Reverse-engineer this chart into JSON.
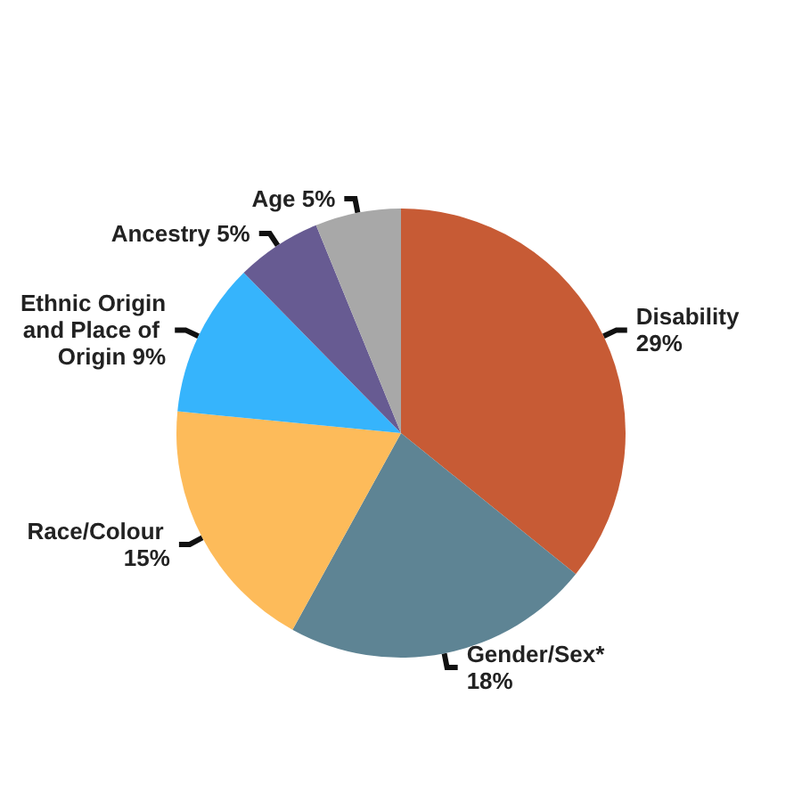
{
  "chart_data": {
    "type": "pie",
    "categories": [
      "Disability",
      "Gender/Sex*",
      "Race/Colour",
      "Ethnic Origin and Place of Origin",
      "Ancestry",
      "Age"
    ],
    "values": [
      29,
      18,
      15,
      9,
      5,
      5
    ],
    "value_labels": [
      "29%",
      "18%",
      "15%",
      "9%",
      "5%",
      "5%"
    ],
    "colors": [
      "#c75b35",
      "#5e8494",
      "#fdbb5a",
      "#36b4fc",
      "#675b92",
      "#a8a8a8"
    ]
  }
}
